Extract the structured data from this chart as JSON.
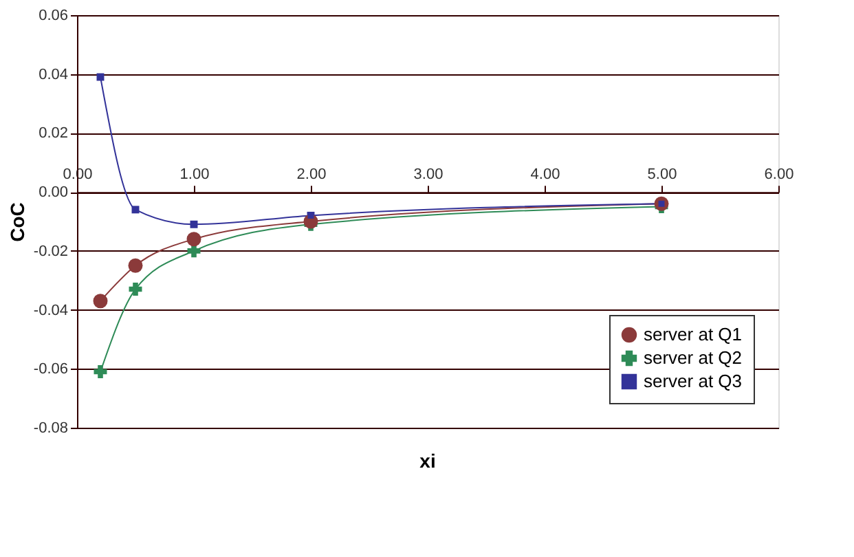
{
  "chart_data": {
    "type": "line",
    "xlabel": "xi",
    "ylabel": "CoC",
    "xlim": [
      0,
      6
    ],
    "xticks": [
      {
        "value": 0,
        "label": "0.00"
      },
      {
        "value": 1,
        "label": "1.00"
      },
      {
        "value": 2,
        "label": "2.00"
      },
      {
        "value": 3,
        "label": "3.00"
      },
      {
        "value": 4,
        "label": "4.00"
      },
      {
        "value": 5,
        "label": "5.00"
      },
      {
        "value": 6,
        "label": "6.00"
      }
    ],
    "ylim": [
      -0.08,
      0.06
    ],
    "yticks": [
      {
        "value": -0.08,
        "label": "-0.08"
      },
      {
        "value": -0.06,
        "label": "-0.06"
      },
      {
        "value": -0.04,
        "label": "-0.04"
      },
      {
        "value": -0.02,
        "label": "-0.02"
      },
      {
        "value": 0,
        "label": "0.00"
      },
      {
        "value": 0.02,
        "label": "0.02"
      },
      {
        "value": 0.04,
        "label": "0.04"
      },
      {
        "value": 0.06,
        "label": "0.06"
      }
    ],
    "grid": "y",
    "legend": "bottom right",
    "line_style": "solid",
    "series": [
      {
        "name": "server at Q1",
        "color": "#8b3a3a",
        "marker": "circle",
        "x": [
          0.2,
          0.5,
          1,
          2,
          5
        ],
        "values": [
          -0.037,
          -0.025,
          -0.016,
          -0.01,
          -0.004
        ]
      },
      {
        "name": "server at Q2",
        "color": "#2e8b57",
        "marker": "cross",
        "x": [
          0.2,
          0.5,
          1,
          2,
          5
        ],
        "values": [
          -0.061,
          -0.033,
          -0.02,
          -0.011,
          -0.005
        ]
      },
      {
        "name": "server at Q3",
        "color": "#333399",
        "marker": "square",
        "x": [
          0.2,
          0.5,
          1,
          2,
          5
        ],
        "values": [
          0.039,
          -0.006,
          -0.011,
          -0.008,
          -0.004
        ]
      }
    ]
  }
}
